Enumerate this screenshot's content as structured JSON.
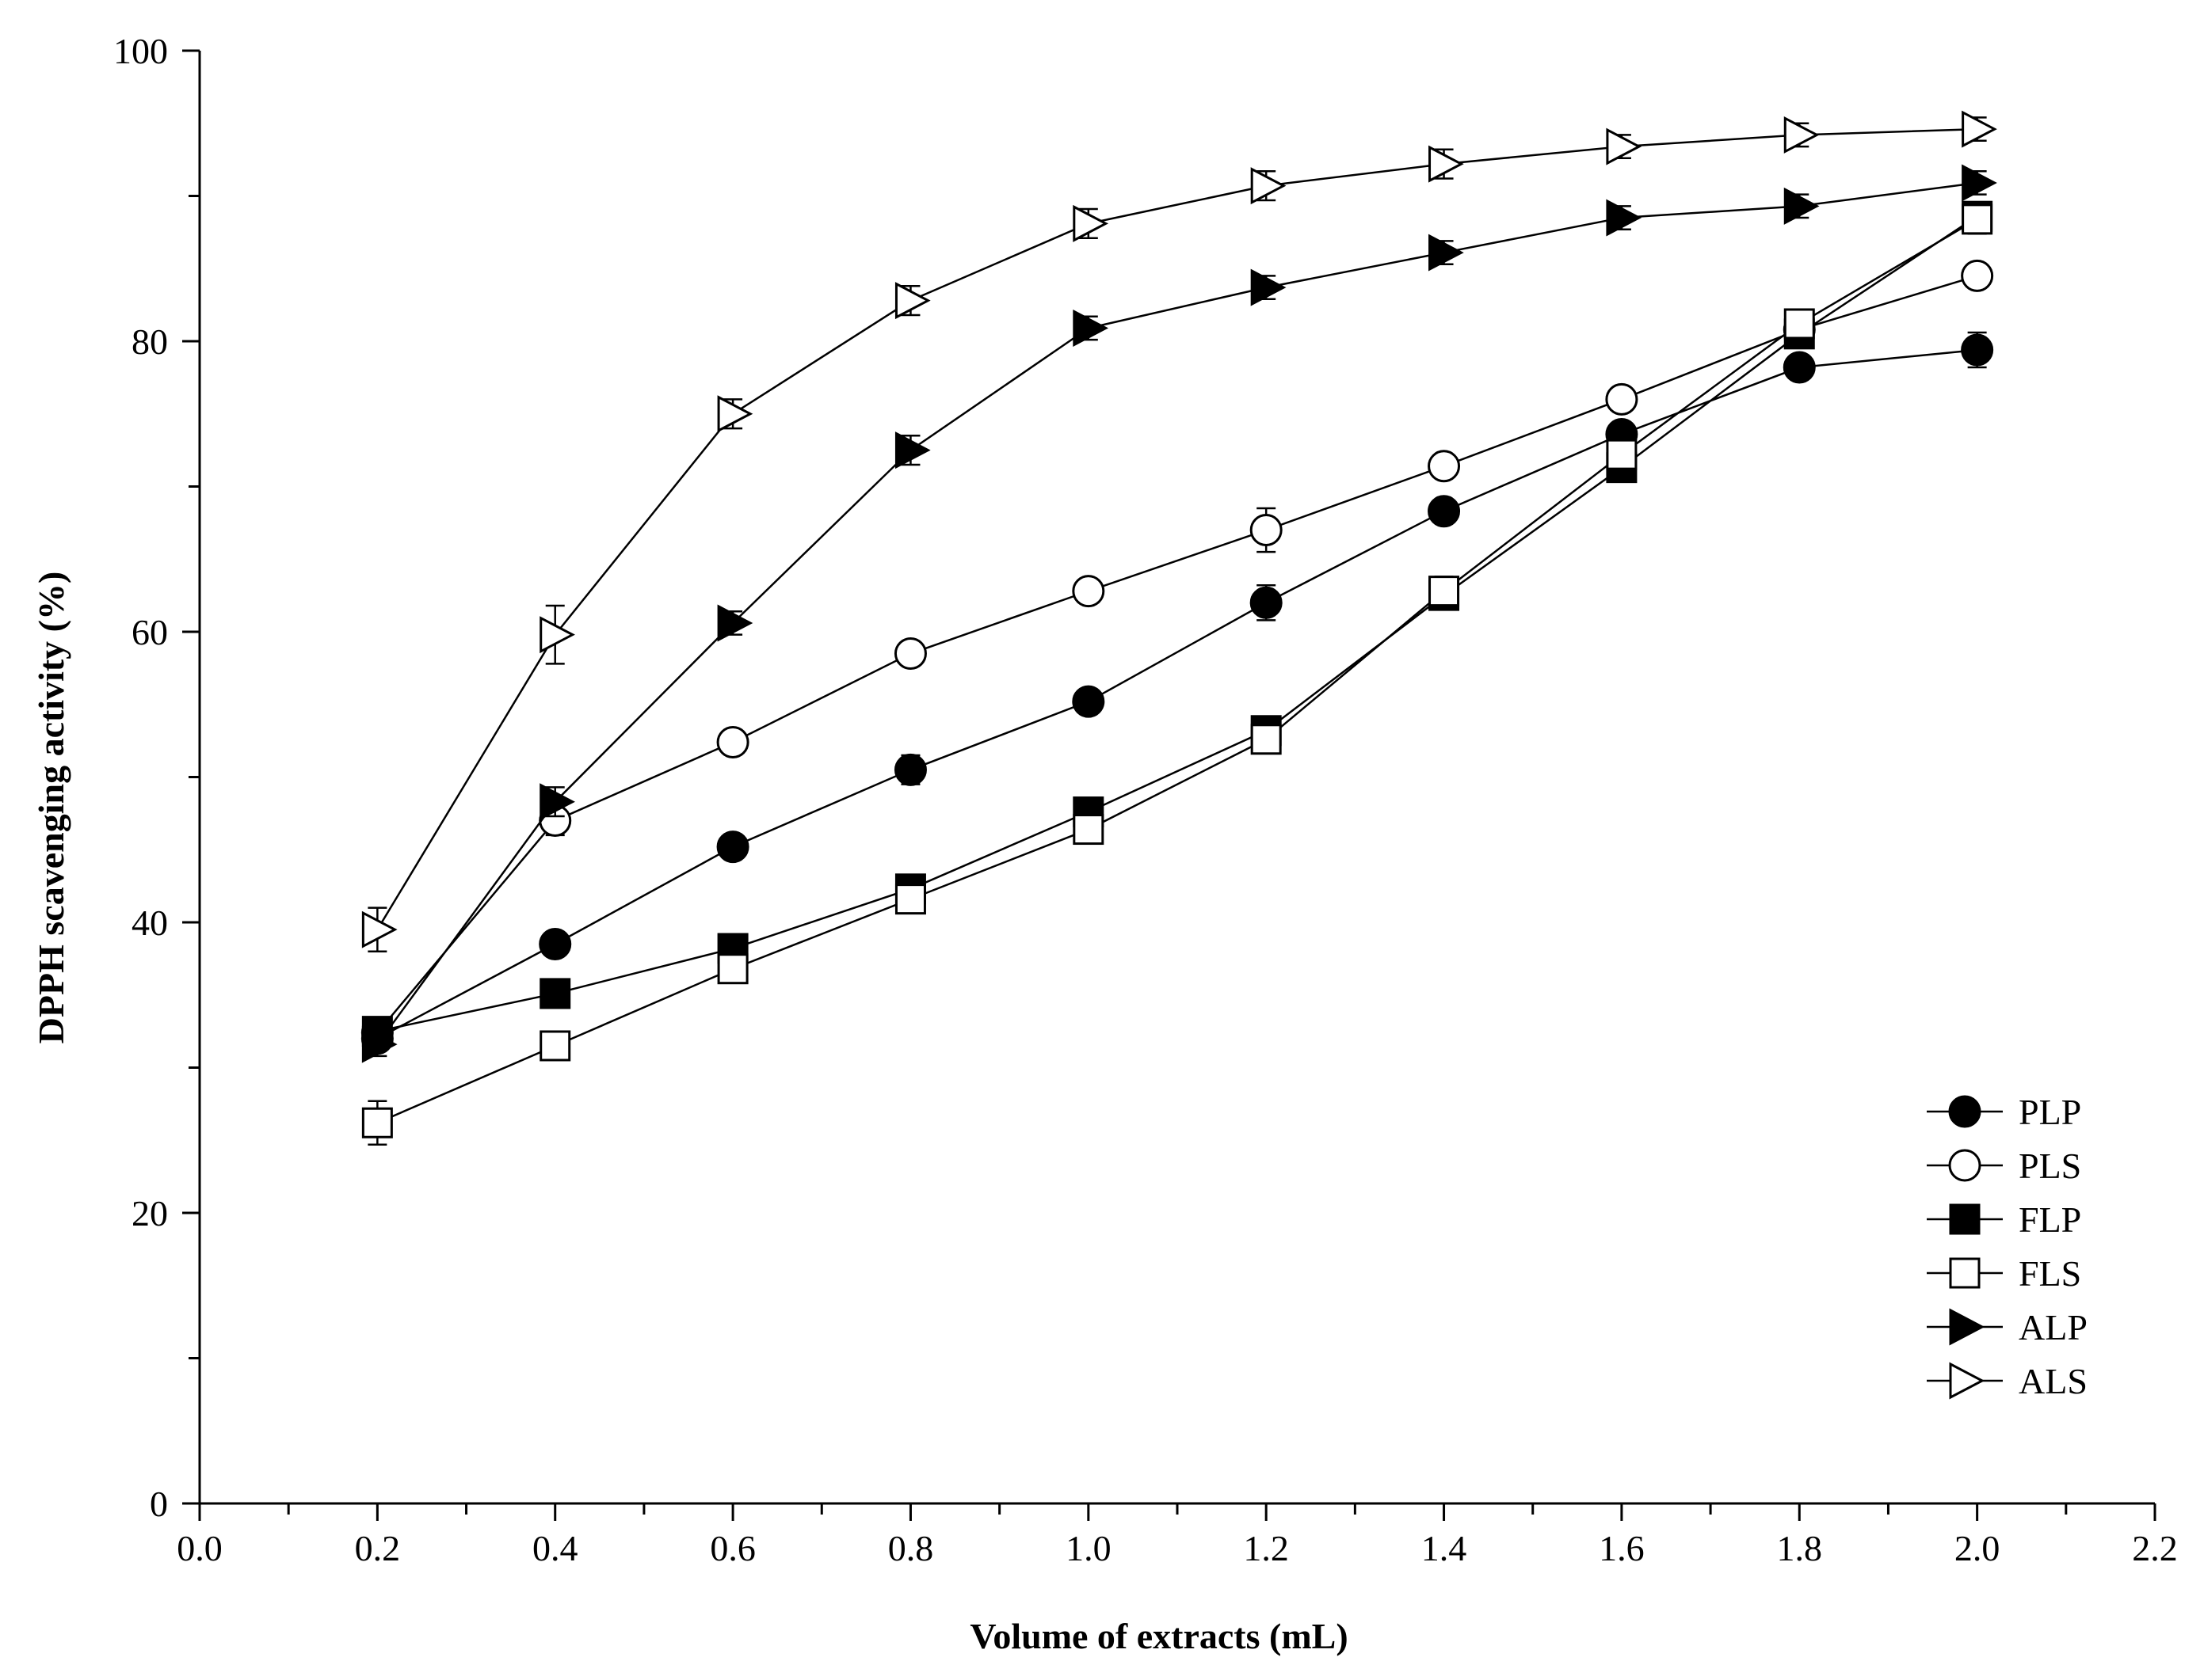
{
  "chart_data": {
    "type": "line",
    "title": "",
    "xlabel": "Volume of extracts (mL)",
    "ylabel": "DPPH  scavenging activity (%)",
    "xlim": [
      0.0,
      2.2
    ],
    "ylim": [
      0,
      100
    ],
    "x_ticks": [
      "0.0",
      "0.2",
      "0.4",
      "0.6",
      "0.8",
      "1.0",
      "1.2",
      "1.4",
      "1.6",
      "1.8",
      "2.0",
      "2.2"
    ],
    "y_ticks": [
      "0",
      "20",
      "40",
      "60",
      "80",
      "100"
    ],
    "x_minor_step": 0.1,
    "y_minor_step": 10,
    "grid": false,
    "legend_position": "bottom-right",
    "x": [
      0.2,
      0.4,
      0.6,
      0.8,
      1.0,
      1.2,
      1.4,
      1.6,
      1.8,
      2.0
    ],
    "series": [
      {
        "name": "PLP",
        "marker": "circle-filled",
        "values": [
          32.0,
          38.5,
          45.2,
          50.5,
          55.2,
          62.0,
          68.3,
          73.6,
          78.2,
          79.4
        ],
        "errors": [
          0.6,
          0.6,
          0.6,
          1.0,
          0.6,
          1.2,
          0.6,
          0.6,
          0.6,
          1.2
        ]
      },
      {
        "name": "PLS",
        "marker": "circle-open",
        "values": [
          32.4,
          47.0,
          52.4,
          58.5,
          62.8,
          67.0,
          71.4,
          76.0,
          80.8,
          84.5
        ],
        "errors": [
          0.6,
          1.0,
          0.8,
          0.8,
          0.8,
          1.5,
          0.6,
          0.6,
          0.6,
          0.8
        ]
      },
      {
        "name": "FLP",
        "marker": "square-filled",
        "values": [
          32.5,
          35.1,
          38.2,
          42.3,
          47.6,
          53.2,
          62.5,
          71.3,
          80.5,
          88.6
        ],
        "errors": [
          0.6,
          0.6,
          0.6,
          0.6,
          0.6,
          0.6,
          0.6,
          0.6,
          0.6,
          0.6
        ]
      },
      {
        "name": "FLS",
        "marker": "square-open",
        "values": [
          26.2,
          31.5,
          36.8,
          41.6,
          46.4,
          52.6,
          62.8,
          72.2,
          81.2,
          88.4
        ],
        "errors": [
          1.5,
          0.8,
          0.8,
          0.8,
          0.8,
          0.8,
          1.0,
          0.8,
          0.8,
          1.0
        ]
      },
      {
        "name": "ALP",
        "marker": "triangle-right-filled",
        "values": [
          31.6,
          48.3,
          60.6,
          72.5,
          80.9,
          83.7,
          86.1,
          88.5,
          89.3,
          90.9
        ],
        "errors": [
          0.8,
          1.0,
          0.8,
          1.0,
          0.8,
          0.8,
          0.8,
          0.8,
          0.8,
          0.8
        ]
      },
      {
        "name": "ALS",
        "marker": "triangle-right-open",
        "values": [
          39.5,
          59.8,
          75.0,
          82.8,
          88.1,
          90.7,
          92.2,
          93.4,
          94.2,
          94.6
        ],
        "errors": [
          1.5,
          2.0,
          1.0,
          1.0,
          1.0,
          1.0,
          1.0,
          0.8,
          0.8,
          0.8
        ]
      }
    ]
  }
}
